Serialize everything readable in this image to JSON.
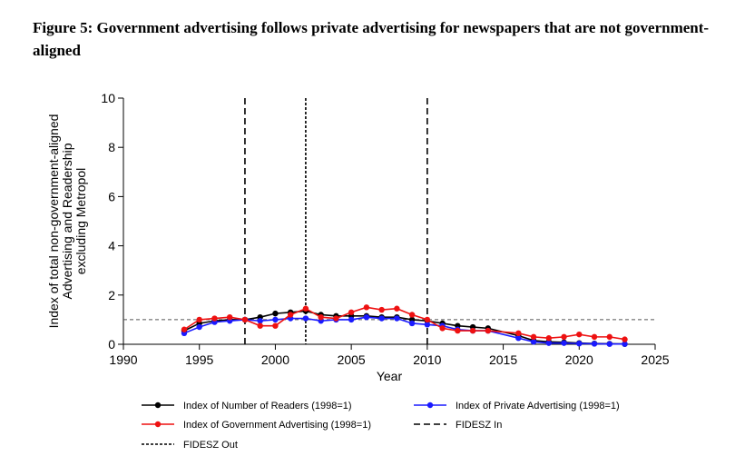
{
  "figure": {
    "title": "Figure 5: Government advertising follows private advertising for newspapers that are not government-aligned"
  },
  "chart_data": {
    "type": "line",
    "xlabel": "Year",
    "ylabel_lines": [
      "Index of total non-government-aligned",
      "Advertising and Readership",
      "excluding Metropol"
    ],
    "xlim": [
      1990,
      2025
    ],
    "ylim": [
      0,
      10
    ],
    "xticks": [
      1990,
      1995,
      2000,
      2005,
      2010,
      2015,
      2020,
      2025
    ],
    "yticks": [
      0,
      2,
      4,
      6,
      8,
      10
    ],
    "x": [
      1994,
      1995,
      1996,
      1997,
      1998,
      1999,
      2000,
      2001,
      2002,
      2003,
      2004,
      2005,
      2006,
      2007,
      2008,
      2009,
      2010,
      2011,
      2012,
      2013,
      2014,
      2016,
      2017,
      2018,
      2019,
      2020,
      2021,
      2022,
      2023
    ],
    "series": [
      {
        "name": "Index of Number of Readers (1998=1)",
        "color": "#000000",
        "values": [
          0.55,
          0.85,
          0.95,
          1.0,
          1.0,
          1.1,
          1.25,
          1.3,
          1.35,
          1.2,
          1.15,
          1.15,
          1.15,
          1.1,
          1.1,
          1.0,
          0.95,
          0.85,
          0.75,
          0.7,
          0.65,
          0.35,
          0.15,
          0.1,
          0.08,
          0.05,
          0.03,
          0.02,
          0.01
        ]
      },
      {
        "name": "Index of Private Advertising (1998=1)",
        "color": "#1a1aff",
        "values": [
          0.45,
          0.7,
          0.9,
          0.95,
          1.0,
          0.95,
          1.0,
          1.05,
          1.05,
          0.95,
          1.0,
          1.0,
          1.1,
          1.05,
          1.05,
          0.85,
          0.8,
          0.75,
          0.6,
          0.55,
          0.55,
          0.25,
          0.1,
          0.05,
          0.05,
          0.03,
          0.02,
          0.01,
          0.01
        ]
      },
      {
        "name": "Index of Government Advertising (1998=1)",
        "color": "#ee1111",
        "values": [
          0.6,
          1.0,
          1.05,
          1.1,
          1.0,
          0.75,
          0.75,
          1.2,
          1.45,
          1.1,
          1.05,
          1.3,
          1.5,
          1.4,
          1.45,
          1.2,
          1.0,
          0.65,
          0.55,
          0.55,
          0.55,
          0.45,
          0.3,
          0.25,
          0.3,
          0.4,
          0.3,
          0.3,
          0.2
        ]
      }
    ],
    "reference_line": {
      "y": 1.0,
      "style": "dashed",
      "color": "#555555"
    },
    "vertical_lines": [
      {
        "x": 1998,
        "style": "long-dash",
        "legend_name": "FIDESZ In"
      },
      {
        "x": 2002,
        "style": "short-dash",
        "legend_name": "FIDESZ Out"
      },
      {
        "x": 2010,
        "style": "long-dash",
        "legend_name": "FIDESZ In"
      }
    ],
    "legend": {
      "placement": "bottom",
      "entries": [
        {
          "label": "Index of Number of Readers (1998=1)",
          "kind": "marker-line",
          "color": "#000000"
        },
        {
          "label": "Index of Private Advertising (1998=1)",
          "kind": "marker-line",
          "color": "#1a1aff"
        },
        {
          "label": "Index of Government Advertising (1998=1)",
          "kind": "marker-line",
          "color": "#ee1111"
        },
        {
          "label": "FIDESZ In",
          "kind": "long-dash",
          "color": "#000000"
        },
        {
          "label": "FIDESZ Out",
          "kind": "short-dash",
          "color": "#000000"
        }
      ]
    },
    "grid": false
  }
}
